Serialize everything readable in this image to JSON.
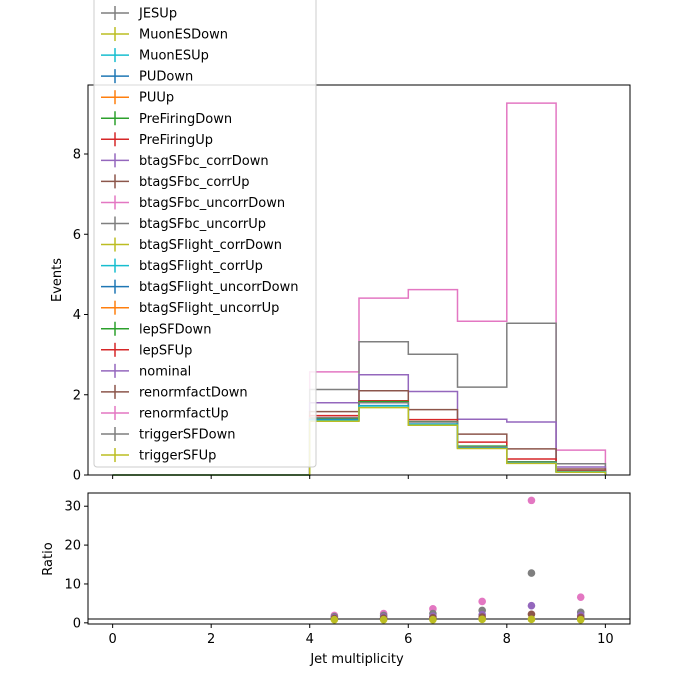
{
  "chart_data": [
    {
      "type": "step",
      "panel": "main",
      "xlabel": "",
      "ylabel": "Events",
      "xlim": [
        -0.5,
        10.5
      ],
      "ylim": [
        0,
        9.72
      ],
      "yticks": [
        0,
        2,
        4,
        6,
        8
      ],
      "xticks": [
        0,
        2,
        4,
        6,
        8,
        10
      ],
      "bin_edges": [
        0,
        1,
        2,
        3,
        4,
        5,
        6,
        7,
        8,
        9,
        10
      ],
      "series": [
        {
          "name": "renormfactUp",
          "color": "#e377c2",
          "values": [
            0,
            0,
            0,
            0,
            2.57,
            4.41,
            4.62,
            3.83,
            9.27,
            0.62
          ]
        },
        {
          "name": "triggerSFDown",
          "color": "#7f7f7f",
          "values": [
            0,
            0,
            0,
            0,
            2.13,
            3.32,
            3.01,
            2.19,
            3.78,
            0.28
          ]
        },
        {
          "name": "nominal",
          "color": "#9467bd",
          "values": [
            0,
            0,
            0,
            0,
            1.8,
            2.5,
            2.08,
            1.39,
            1.32,
            0.2
          ]
        },
        {
          "name": "renormfactDown",
          "color": "#8c564b",
          "values": [
            0,
            0,
            0,
            0,
            1.58,
            2.1,
            1.63,
            1.02,
            0.65,
            0.15
          ]
        },
        {
          "name": "lepSFUp",
          "color": "#d62728",
          "values": [
            0,
            0,
            0,
            0,
            1.48,
            1.85,
            1.38,
            0.82,
            0.4,
            0.11
          ]
        },
        {
          "name": "lepSFDown",
          "color": "#2ca02c",
          "values": [
            0,
            0,
            0,
            0,
            1.4,
            1.83,
            1.33,
            0.72,
            0.33,
            0.09
          ]
        },
        {
          "name": "JESUp",
          "color": "#7f7f7f",
          "values": [
            0,
            0,
            0,
            0,
            1.43,
            1.8,
            1.32,
            0.7,
            0.32,
            0.09
          ]
        },
        {
          "name": "PUDown",
          "color": "#1f77b4",
          "values": [
            0,
            0,
            0,
            0,
            1.38,
            1.73,
            1.27,
            0.68,
            0.3,
            0.08
          ]
        },
        {
          "name": "MuonESUp",
          "color": "#17becf",
          "values": [
            0,
            0,
            0,
            0,
            1.36,
            1.72,
            1.26,
            0.67,
            0.3,
            0.08
          ]
        },
        {
          "name": "triggerSFUp",
          "color": "#bcbd22",
          "values": [
            0,
            0,
            0,
            0,
            1.34,
            1.68,
            1.24,
            0.66,
            0.29,
            0.07
          ]
        }
      ]
    },
    {
      "type": "scatter",
      "panel": "ratio",
      "xlabel": "Jet multiplicity",
      "ylabel": "Ratio",
      "xlim": [
        -0.5,
        10.5
      ],
      "ylim": [
        -0.3,
        33.4
      ],
      "yticks": [
        0,
        10,
        20,
        30
      ],
      "xticks": [
        0,
        2,
        4,
        6,
        8,
        10
      ],
      "reference_line": 1,
      "series": [
        {
          "name": "renormfactUp",
          "color": "#e377c2",
          "x": [
            4.5,
            5.5,
            6.5,
            7.5,
            8.5,
            9.5
          ],
          "y": [
            1.9,
            2.4,
            3.6,
            5.5,
            31.5,
            6.6
          ]
        },
        {
          "name": "triggerSFDown",
          "color": "#7f7f7f",
          "x": [
            4.5,
            5.5,
            6.5,
            7.5,
            8.5,
            9.5
          ],
          "y": [
            1.6,
            1.9,
            2.4,
            3.2,
            12.8,
            2.7
          ]
        },
        {
          "name": "nominal",
          "color": "#9467bd",
          "x": [
            4.5,
            5.5,
            6.5,
            7.5,
            8.5,
            9.5
          ],
          "y": [
            1.3,
            1.5,
            1.7,
            2.1,
            4.4,
            1.9
          ]
        },
        {
          "name": "renormfactDown",
          "color": "#8c564b",
          "x": [
            4.5,
            5.5,
            6.5,
            7.5,
            8.5,
            9.5
          ],
          "y": [
            1.1,
            1.2,
            1.3,
            1.5,
            2.2,
            1.4
          ]
        },
        {
          "name": "triggerSFUp",
          "color": "#bcbd22",
          "x": [
            4.5,
            5.5,
            6.5,
            7.5,
            8.5,
            9.5
          ],
          "y": [
            0.8,
            0.8,
            0.8,
            0.9,
            0.9,
            0.8
          ]
        }
      ]
    }
  ],
  "legend": {
    "placement": "upper-left",
    "entries": [
      {
        "name": "JESUp",
        "color": "#7f7f7f"
      },
      {
        "name": "MuonESDown",
        "color": "#bcbd22"
      },
      {
        "name": "MuonESUp",
        "color": "#17becf"
      },
      {
        "name": "PUDown",
        "color": "#1f77b4"
      },
      {
        "name": "PUUp",
        "color": "#ff7f0e"
      },
      {
        "name": "PreFiringDown",
        "color": "#2ca02c"
      },
      {
        "name": "PreFiringUp",
        "color": "#d62728"
      },
      {
        "name": "btagSFbc_corrDown",
        "color": "#9467bd"
      },
      {
        "name": "btagSFbc_corrUp",
        "color": "#8c564b"
      },
      {
        "name": "btagSFbc_uncorrDown",
        "color": "#e377c2"
      },
      {
        "name": "btagSFbc_uncorrUp",
        "color": "#7f7f7f"
      },
      {
        "name": "btagSFlight_corrDown",
        "color": "#bcbd22"
      },
      {
        "name": "btagSFlight_corrUp",
        "color": "#17becf"
      },
      {
        "name": "btagSFlight_uncorrDown",
        "color": "#1f77b4"
      },
      {
        "name": "btagSFlight_uncorrUp",
        "color": "#ff7f0e"
      },
      {
        "name": "lepSFDown",
        "color": "#2ca02c"
      },
      {
        "name": "lepSFUp",
        "color": "#d62728"
      },
      {
        "name": "nominal",
        "color": "#9467bd"
      },
      {
        "name": "renormfactDown",
        "color": "#8c564b"
      },
      {
        "name": "renormfactUp",
        "color": "#e377c2"
      },
      {
        "name": "triggerSFDown",
        "color": "#7f7f7f"
      },
      {
        "name": "triggerSFUp",
        "color": "#bcbd22"
      }
    ]
  }
}
